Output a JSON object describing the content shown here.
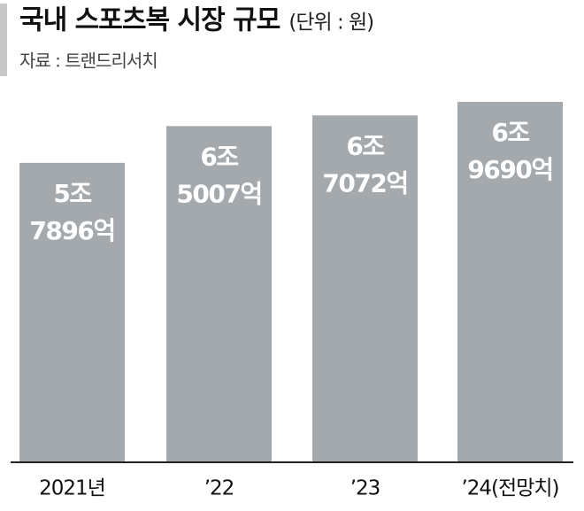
{
  "chart_data": {
    "type": "bar",
    "title": "국내 스포츠복 시장 규모",
    "unit": "(단위 : 원)",
    "source": "자료 : 트랜드리서치",
    "categories": [
      "2021년",
      "’22",
      "’23",
      "’24(전망치)"
    ],
    "values": [
      57896,
      65007,
      67072,
      69690
    ],
    "value_labels": [
      "5조\n7896억",
      "6조\n5007억",
      "6조\n7072억",
      "6조\n9690억"
    ],
    "color": "#a4a9ae"
  }
}
